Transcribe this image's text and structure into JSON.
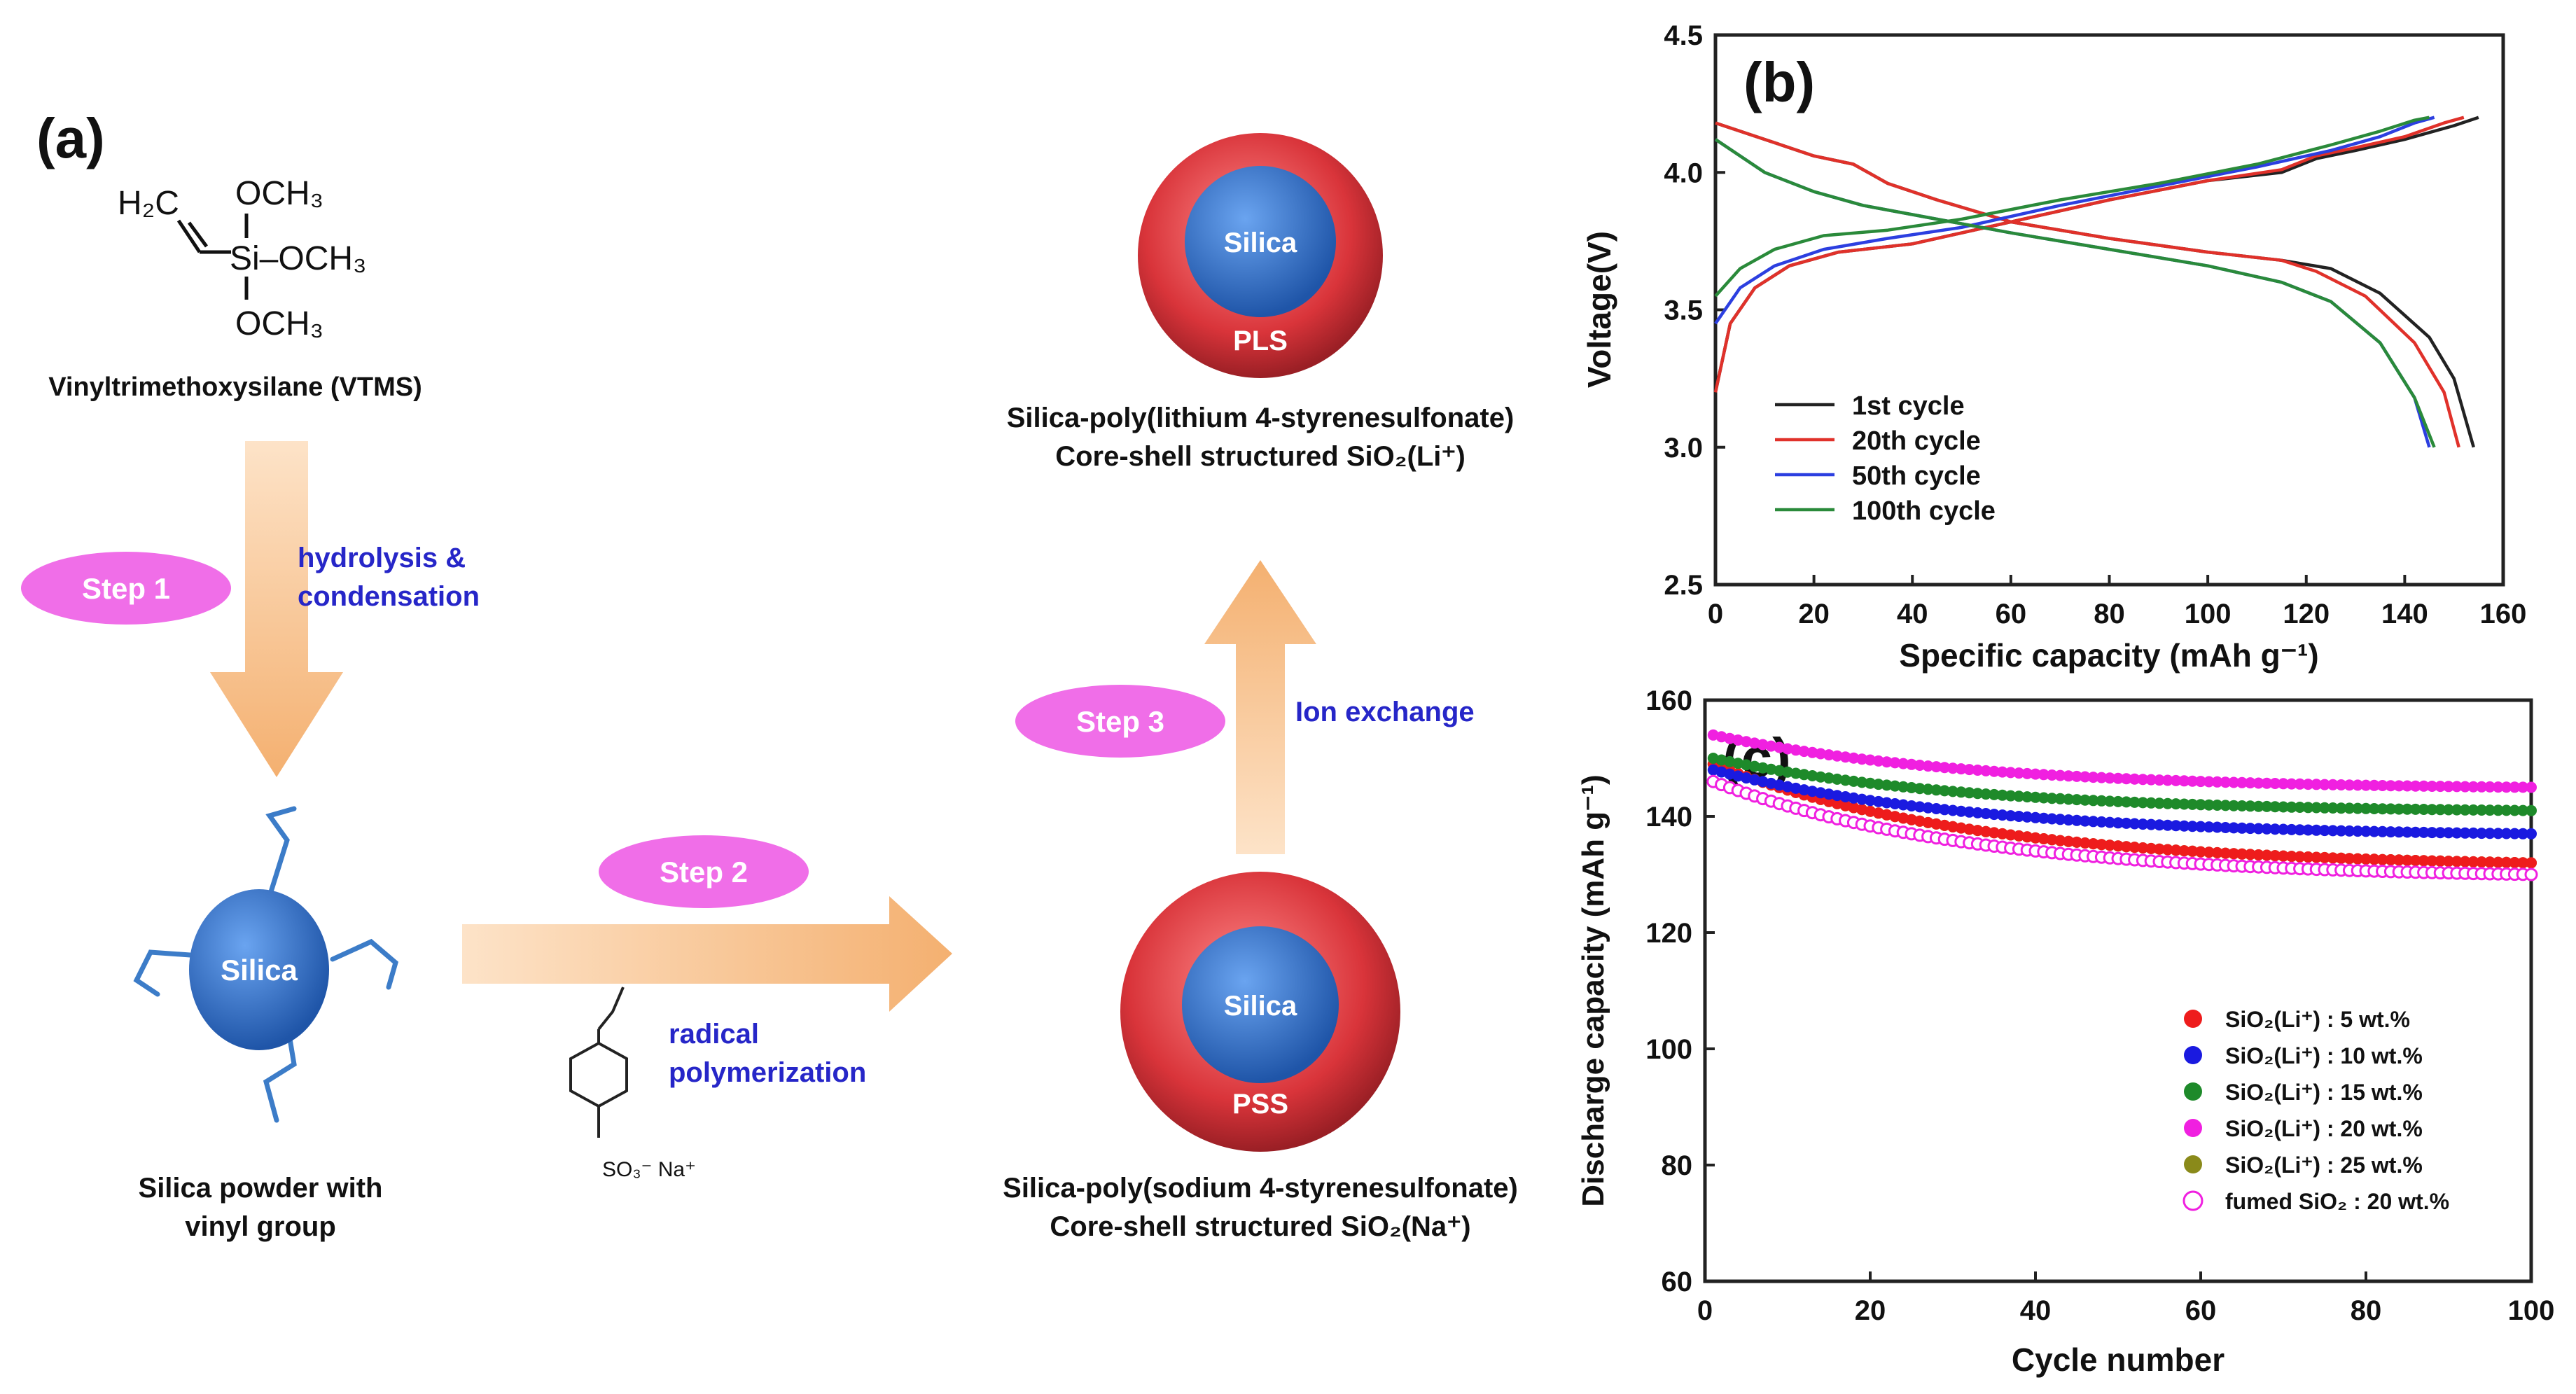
{
  "panel_a": {
    "label": "(a)",
    "vtms": {
      "h2c": "H₂C",
      "och3": "OCH₃",
      "si_och3": "Si–OCH₃",
      "name": "Vinyltrimethoxysilane (VTMS)"
    },
    "step1": {
      "label": "Step 1",
      "desc_line1": "hydrolysis &",
      "desc_line2": "condensation"
    },
    "silica_label": "Silica",
    "silica_vinyl_caption_1": "Silica powder with",
    "silica_vinyl_caption_2": "vinyl group",
    "step2": {
      "label": "Step 2",
      "desc_line1": "radical",
      "desc_line2": "polymerization",
      "monomer": "SO₃⁻ Na⁺"
    },
    "pss": {
      "core": "Silica",
      "shell": "PSS",
      "caption_1": "Silica-poly(sodium 4-styrenesulfonate)",
      "caption_2": "Core-shell structured SiO₂(Na⁺)"
    },
    "step3": {
      "label": "Step 3",
      "desc": "Ion exchange"
    },
    "pls": {
      "core": "Silica",
      "shell": "PLS",
      "caption_1": "Silica-poly(lithium 4-styrenesulfonate)",
      "caption_2": "Core-shell structured SiO₂(Li⁺)"
    },
    "colors": {
      "ellipse": "#f06ee8",
      "step_text": "#ffffff",
      "desc_text": "#2626c8",
      "arrow": "#f7c08c",
      "core": "#2f6fc0",
      "shell": "#c8323a",
      "vinyl": "#3c7cc8"
    }
  },
  "chart_data": [
    {
      "type": "line",
      "panel": "(b)",
      "title": "",
      "xlabel": "Specific capacity (mAh g⁻¹)",
      "ylabel": "Voltage(V)",
      "xlim": [
        0,
        160
      ],
      "ylim": [
        2.5,
        4.5
      ],
      "xticks": [
        "0",
        "20",
        "40",
        "60",
        "80",
        "100",
        "120",
        "140",
        "160"
      ],
      "yticks": [
        "2.5",
        "3.0",
        "3.5",
        "4.0",
        "4.5"
      ],
      "legend_position": "bottom-left",
      "series": [
        {
          "name": "1st cycle",
          "color": "#222222",
          "charge": [
            [
              0,
              3.2
            ],
            [
              3,
              3.45
            ],
            [
              8,
              3.58
            ],
            [
              15,
              3.66
            ],
            [
              25,
              3.71
            ],
            [
              40,
              3.74
            ],
            [
              60,
              3.82
            ],
            [
              80,
              3.9
            ],
            [
              100,
              3.97
            ],
            [
              115,
              4.0
            ],
            [
              122,
              4.05
            ],
            [
              130,
              4.08
            ],
            [
              140,
              4.12
            ],
            [
              150,
              4.17
            ],
            [
              155,
              4.2
            ]
          ],
          "discharge": [
            [
              0,
              4.18
            ],
            [
              10,
              4.12
            ],
            [
              20,
              4.06
            ],
            [
              28,
              4.03
            ],
            [
              35,
              3.96
            ],
            [
              45,
              3.9
            ],
            [
              60,
              3.82
            ],
            [
              80,
              3.76
            ],
            [
              100,
              3.71
            ],
            [
              115,
              3.68
            ],
            [
              125,
              3.65
            ],
            [
              135,
              3.56
            ],
            [
              145,
              3.4
            ],
            [
              150,
              3.25
            ],
            [
              154,
              3.0
            ]
          ]
        },
        {
          "name": "20th cycle",
          "color": "#e0312a",
          "charge": [
            [
              0,
              3.2
            ],
            [
              3,
              3.45
            ],
            [
              8,
              3.58
            ],
            [
              15,
              3.66
            ],
            [
              25,
              3.71
            ],
            [
              40,
              3.74
            ],
            [
              60,
              3.82
            ],
            [
              80,
              3.9
            ],
            [
              100,
              3.97
            ],
            [
              115,
              4.01
            ],
            [
              122,
              4.06
            ],
            [
              130,
              4.09
            ],
            [
              140,
              4.13
            ],
            [
              148,
              4.18
            ],
            [
              152,
              4.2
            ]
          ],
          "discharge": [
            [
              0,
              4.18
            ],
            [
              10,
              4.12
            ],
            [
              20,
              4.06
            ],
            [
              28,
              4.03
            ],
            [
              35,
              3.96
            ],
            [
              45,
              3.9
            ],
            [
              60,
              3.82
            ],
            [
              80,
              3.76
            ],
            [
              100,
              3.71
            ],
            [
              115,
              3.68
            ],
            [
              122,
              3.64
            ],
            [
              132,
              3.55
            ],
            [
              142,
              3.38
            ],
            [
              148,
              3.2
            ],
            [
              151,
              3.0
            ]
          ]
        },
        {
          "name": "50th cycle",
          "color": "#2c3fe0",
          "charge": [
            [
              0,
              3.45
            ],
            [
              5,
              3.58
            ],
            [
              12,
              3.66
            ],
            [
              22,
              3.72
            ],
            [
              35,
              3.76
            ],
            [
              50,
              3.8
            ],
            [
              70,
              3.88
            ],
            [
              90,
              3.95
            ],
            [
              110,
              4.02
            ],
            [
              125,
              4.08
            ],
            [
              135,
              4.13
            ],
            [
              142,
              4.18
            ],
            [
              146,
              4.2
            ]
          ],
          "discharge": [
            [
              0,
              4.12
            ],
            [
              10,
              4.0
            ],
            [
              20,
              3.93
            ],
            [
              30,
              3.88
            ],
            [
              45,
              3.83
            ],
            [
              60,
              3.78
            ],
            [
              80,
              3.72
            ],
            [
              100,
              3.66
            ],
            [
              115,
              3.6
            ],
            [
              125,
              3.53
            ],
            [
              135,
              3.38
            ],
            [
              142,
              3.18
            ],
            [
              145,
              3.0
            ]
          ]
        },
        {
          "name": "100th cycle",
          "color": "#2a8a3a",
          "charge": [
            [
              0,
              3.55
            ],
            [
              5,
              3.65
            ],
            [
              12,
              3.72
            ],
            [
              22,
              3.77
            ],
            [
              35,
              3.79
            ],
            [
              50,
              3.83
            ],
            [
              70,
              3.9
            ],
            [
              90,
              3.96
            ],
            [
              110,
              4.03
            ],
            [
              125,
              4.1
            ],
            [
              135,
              4.15
            ],
            [
              142,
              4.19
            ],
            [
              145,
              4.2
            ]
          ],
          "discharge": [
            [
              0,
              4.12
            ],
            [
              10,
              4.0
            ],
            [
              20,
              3.93
            ],
            [
              30,
              3.88
            ],
            [
              45,
              3.83
            ],
            [
              60,
              3.78
            ],
            [
              80,
              3.72
            ],
            [
              100,
              3.66
            ],
            [
              115,
              3.6
            ],
            [
              125,
              3.53
            ],
            [
              135,
              3.38
            ],
            [
              142,
              3.18
            ],
            [
              146,
              3.0
            ]
          ]
        }
      ]
    },
    {
      "type": "scatter",
      "panel": "(c)",
      "title": "",
      "xlabel": "Cycle number",
      "ylabel": "Discharge capacity (mAh g⁻¹)",
      "xlim": [
        0,
        100
      ],
      "ylim": [
        60,
        160
      ],
      "xticks": [
        "0",
        "20",
        "40",
        "60",
        "80",
        "100"
      ],
      "yticks": [
        "60",
        "80",
        "100",
        "120",
        "140",
        "160"
      ],
      "legend_position": "bottom-right",
      "series": [
        {
          "name": "SiO₂(Li⁺) :  5 wt.%",
          "color": "#ee1c1c",
          "filled": true,
          "start": 149,
          "end": 132
        },
        {
          "name": "SiO₂(Li⁺) : 10 wt.%",
          "color": "#1a1ae0",
          "filled": true,
          "start": 148,
          "end": 137
        },
        {
          "name": "SiO₂(Li⁺) : 15 wt.%",
          "color": "#1e8a2a",
          "filled": true,
          "start": 150,
          "end": 141
        },
        {
          "name": "SiO₂(Li⁺) : 20 wt.%",
          "color": "#f020e0",
          "filled": true,
          "start": 154,
          "end": 145
        },
        {
          "name": "SiO₂(Li⁺) : 25 wt.%",
          "color": "#8a8a1a",
          "filled": true,
          "start": 149,
          "end": 132
        },
        {
          "name": "fumed SiO₂ : 20 wt.%",
          "color": "#f020e0",
          "filled": false,
          "start": 146,
          "end": 130
        }
      ]
    }
  ]
}
